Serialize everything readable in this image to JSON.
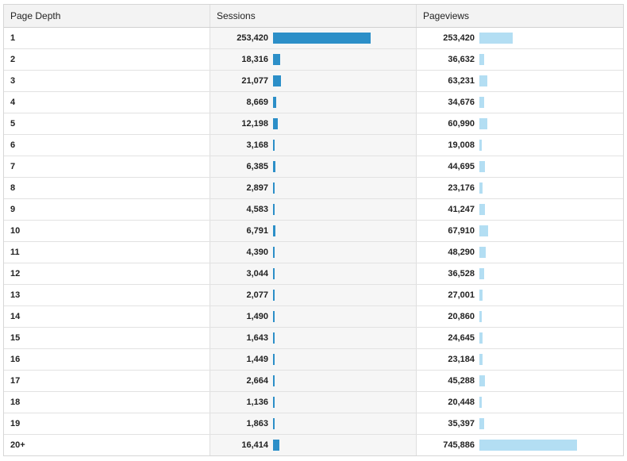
{
  "headers": {
    "depth": "Page Depth",
    "sessions": "Sessions",
    "pageviews": "Pageviews"
  },
  "max": {
    "sessions": 253420,
    "pageviews": 745886
  },
  "rows": [
    {
      "depth": "1",
      "sessions": "253,420",
      "sessions_value": 253420,
      "pageviews": "253,420",
      "pageviews_value": 253420
    },
    {
      "depth": "2",
      "sessions": "18,316",
      "sessions_value": 18316,
      "pageviews": "36,632",
      "pageviews_value": 36632
    },
    {
      "depth": "3",
      "sessions": "21,077",
      "sessions_value": 21077,
      "pageviews": "63,231",
      "pageviews_value": 63231
    },
    {
      "depth": "4",
      "sessions": "8,669",
      "sessions_value": 8669,
      "pageviews": "34,676",
      "pageviews_value": 34676
    },
    {
      "depth": "5",
      "sessions": "12,198",
      "sessions_value": 12198,
      "pageviews": "60,990",
      "pageviews_value": 60990
    },
    {
      "depth": "6",
      "sessions": "3,168",
      "sessions_value": 3168,
      "pageviews": "19,008",
      "pageviews_value": 19008
    },
    {
      "depth": "7",
      "sessions": "6,385",
      "sessions_value": 6385,
      "pageviews": "44,695",
      "pageviews_value": 44695
    },
    {
      "depth": "8",
      "sessions": "2,897",
      "sessions_value": 2897,
      "pageviews": "23,176",
      "pageviews_value": 23176
    },
    {
      "depth": "9",
      "sessions": "4,583",
      "sessions_value": 4583,
      "pageviews": "41,247",
      "pageviews_value": 41247
    },
    {
      "depth": "10",
      "sessions": "6,791",
      "sessions_value": 6791,
      "pageviews": "67,910",
      "pageviews_value": 67910
    },
    {
      "depth": "11",
      "sessions": "4,390",
      "sessions_value": 4390,
      "pageviews": "48,290",
      "pageviews_value": 48290
    },
    {
      "depth": "12",
      "sessions": "3,044",
      "sessions_value": 3044,
      "pageviews": "36,528",
      "pageviews_value": 36528
    },
    {
      "depth": "13",
      "sessions": "2,077",
      "sessions_value": 2077,
      "pageviews": "27,001",
      "pageviews_value": 27001
    },
    {
      "depth": "14",
      "sessions": "1,490",
      "sessions_value": 1490,
      "pageviews": "20,860",
      "pageviews_value": 20860
    },
    {
      "depth": "15",
      "sessions": "1,643",
      "sessions_value": 1643,
      "pageviews": "24,645",
      "pageviews_value": 24645
    },
    {
      "depth": "16",
      "sessions": "1,449",
      "sessions_value": 1449,
      "pageviews": "23,184",
      "pageviews_value": 23184
    },
    {
      "depth": "17",
      "sessions": "2,664",
      "sessions_value": 2664,
      "pageviews": "45,288",
      "pageviews_value": 45288
    },
    {
      "depth": "18",
      "sessions": "1,136",
      "sessions_value": 1136,
      "pageviews": "20,448",
      "pageviews_value": 20448
    },
    {
      "depth": "19",
      "sessions": "1,863",
      "sessions_value": 1863,
      "pageviews": "35,397",
      "pageviews_value": 35397
    },
    {
      "depth": "20+",
      "sessions": "16,414",
      "sessions_value": 16414,
      "pageviews": "745,886",
      "pageviews_value": 745886
    }
  ],
  "colors": {
    "sessions_bar": "#2c8fc8",
    "pageviews_bar": "#b3def3"
  }
}
